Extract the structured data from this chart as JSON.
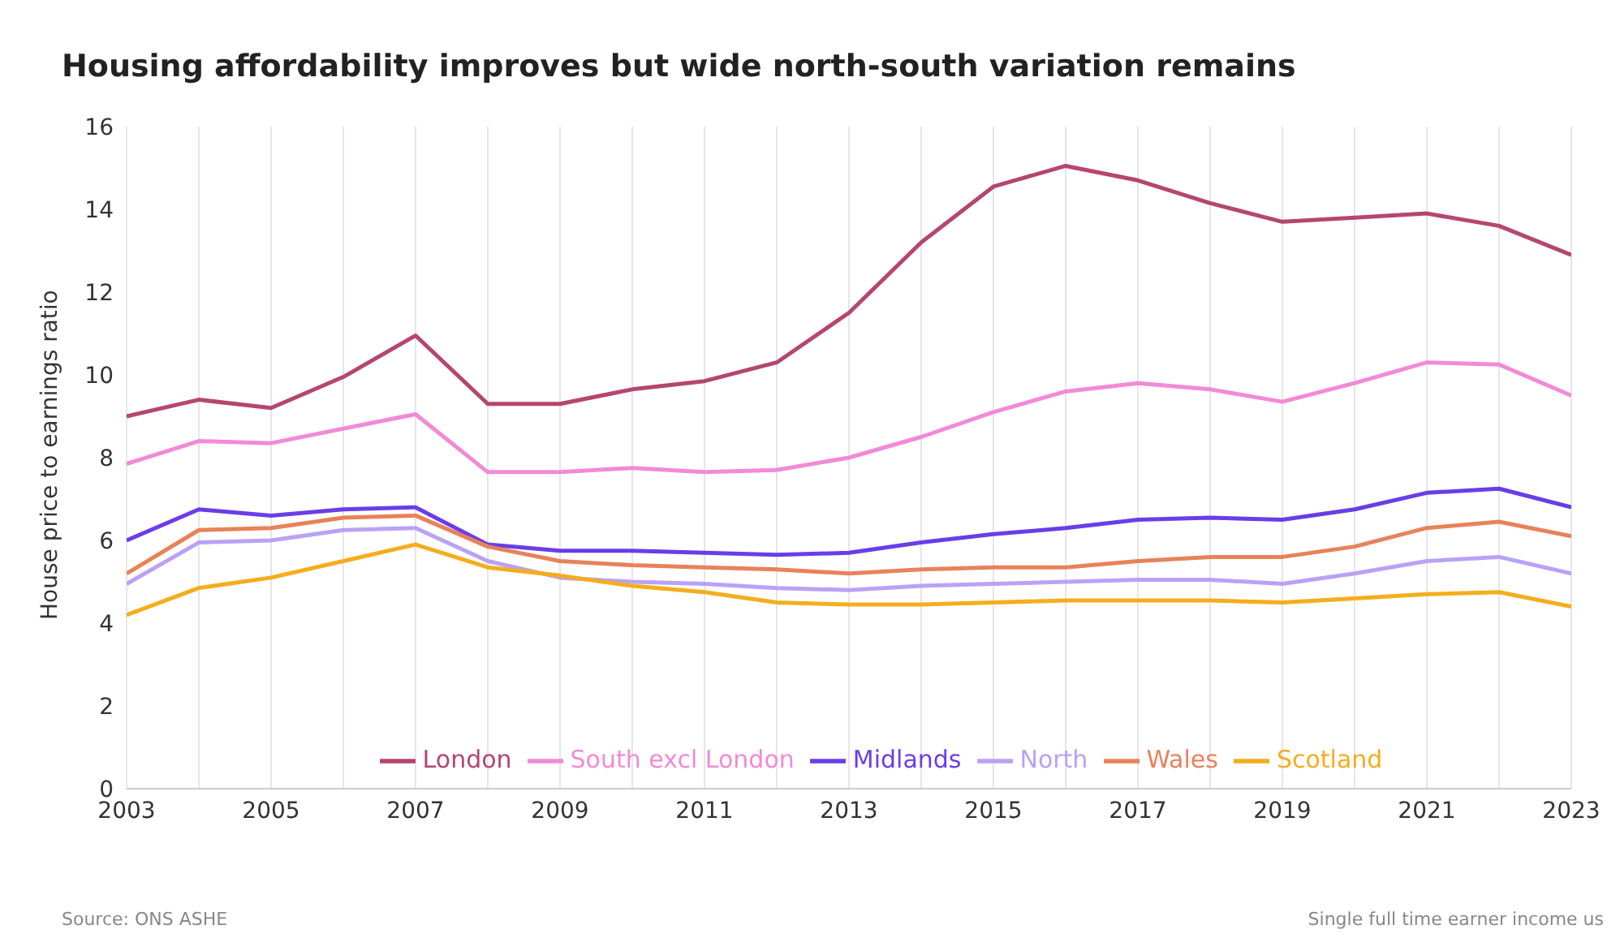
{
  "chart_data": {
    "type": "line",
    "title": "Housing affordability improves but wide north-south variation remains",
    "ylabel": "House price to earnings ratio",
    "annotations": [
      "Source: ONS ASHE",
      "Single full time earner income us"
    ],
    "x": [
      2003,
      2004,
      2005,
      2006,
      2007,
      2008,
      2009,
      2010,
      2011,
      2012,
      2013,
      2014,
      2015,
      2016,
      2017,
      2018,
      2019,
      2020,
      2021,
      2022,
      2023
    ],
    "series": [
      {
        "name": "London",
        "color": "#b5466f",
        "values": [
          9.0,
          9.4,
          9.2,
          9.95,
          10.95,
          9.3,
          9.3,
          9.65,
          9.85,
          10.3,
          11.5,
          13.2,
          14.55,
          15.05,
          14.7,
          14.15,
          13.7,
          13.8,
          13.9,
          13.6,
          12.9
        ]
      },
      {
        "name": "South excl London",
        "color": "#f28ad6",
        "values": [
          7.85,
          8.4,
          8.35,
          8.7,
          9.05,
          7.65,
          7.65,
          7.75,
          7.65,
          7.7,
          8.0,
          8.5,
          9.1,
          9.6,
          9.8,
          9.65,
          9.35,
          9.8,
          10.3,
          10.25,
          9.5
        ]
      },
      {
        "name": "Midlands",
        "color": "#6a3de8",
        "values": [
          6.0,
          6.75,
          6.6,
          6.75,
          6.8,
          5.9,
          5.75,
          5.75,
          5.7,
          5.65,
          5.7,
          5.95,
          6.15,
          6.3,
          6.5,
          6.55,
          6.5,
          6.75,
          7.15,
          7.25,
          6.8
        ]
      },
      {
        "name": "North",
        "color": "#b9a2f5",
        "values": [
          4.95,
          5.95,
          6.0,
          6.25,
          6.3,
          5.5,
          5.1,
          5.0,
          4.95,
          4.85,
          4.8,
          4.9,
          4.95,
          5.0,
          5.05,
          5.05,
          4.95,
          5.2,
          5.5,
          5.6,
          5.2
        ]
      },
      {
        "name": "Wales",
        "color": "#e8825a",
        "values": [
          5.2,
          6.25,
          6.3,
          6.55,
          6.6,
          5.85,
          5.5,
          5.4,
          5.35,
          5.3,
          5.2,
          5.3,
          5.35,
          5.35,
          5.5,
          5.6,
          5.6,
          5.85,
          6.3,
          6.45,
          6.1
        ]
      },
      {
        "name": "Scotland",
        "color": "#f5ad1d",
        "values": [
          4.2,
          4.85,
          5.1,
          5.5,
          5.9,
          5.35,
          5.15,
          4.9,
          4.75,
          4.5,
          4.45,
          4.45,
          4.5,
          4.55,
          4.55,
          4.55,
          4.5,
          4.6,
          4.7,
          4.75,
          4.4
        ]
      }
    ],
    "xlim": [
      2003,
      2023
    ],
    "xticks": [
      2003,
      {
        "value": 2004,
        "label": null
      },
      2005,
      {
        "value": 2006,
        "label": null
      },
      2007,
      {
        "value": 2008,
        "label": null
      },
      2009,
      {
        "value": 2010,
        "label": null
      },
      2011,
      {
        "value": 2012,
        "label": null
      },
      2013,
      {
        "value": 2014,
        "label": null
      },
      2015,
      {
        "value": 2016,
        "label": null
      },
      2017,
      {
        "value": 2018,
        "label": null
      },
      2019,
      {
        "value": 2020,
        "label": null
      },
      2021,
      {
        "value": 2022,
        "label": null
      },
      2023
    ],
    "ylim": [
      0,
      16
    ],
    "yticks": [
      0,
      2,
      4,
      6,
      8,
      10,
      12,
      14,
      16
    ],
    "grid": "x",
    "legend": "bottom",
    "marker": "none",
    "line_style": "solid"
  }
}
